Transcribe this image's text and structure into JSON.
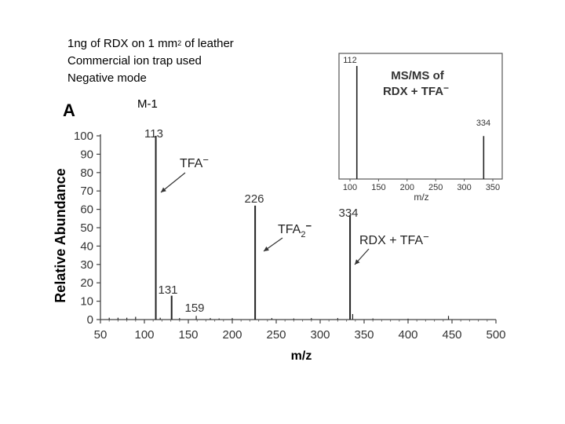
{
  "notes": {
    "line1_pre": "1ng of RDX on 1 mm",
    "line1_sup": "2",
    "line1_post": " of leather",
    "line2": "Commercial ion trap used",
    "line3": "Negative mode",
    "m_minus_1": "M-1"
  },
  "chart_data": [
    {
      "type": "bar",
      "panel_label": "A",
      "xlabel": "m/z",
      "ylabel": "Relative Abundance",
      "xlim": [
        50,
        500
      ],
      "ylim": [
        0,
        100
      ],
      "xticks": [
        50,
        100,
        150,
        200,
        250,
        300,
        350,
        400,
        450,
        500
      ],
      "yticks": [
        0,
        10,
        20,
        30,
        40,
        50,
        60,
        70,
        80,
        90,
        100
      ],
      "peaks": [
        {
          "mz": 113,
          "abundance": 100,
          "label": "113"
        },
        {
          "mz": 131,
          "abundance": 13,
          "label": "131"
        },
        {
          "mz": 159,
          "abundance": 2,
          "label": "159"
        },
        {
          "mz": 226,
          "abundance": 62,
          "label": "226"
        },
        {
          "mz": 334,
          "abundance": 57,
          "label": "334"
        },
        {
          "mz": 337,
          "abundance": 3,
          "label": ""
        },
        {
          "mz": 60,
          "abundance": 1,
          "label": ""
        },
        {
          "mz": 70,
          "abundance": 1,
          "label": ""
        },
        {
          "mz": 80,
          "abundance": 1,
          "label": ""
        },
        {
          "mz": 90,
          "abundance": 1.5,
          "label": ""
        },
        {
          "mz": 118,
          "abundance": 1,
          "label": ""
        },
        {
          "mz": 140,
          "abundance": 0.8,
          "label": ""
        },
        {
          "mz": 175,
          "abundance": 0.8,
          "label": ""
        },
        {
          "mz": 185,
          "abundance": 0.6,
          "label": ""
        },
        {
          "mz": 200,
          "abundance": 0.8,
          "label": ""
        },
        {
          "mz": 245,
          "abundance": 0.8,
          "label": ""
        },
        {
          "mz": 270,
          "abundance": 0.6,
          "label": ""
        },
        {
          "mz": 290,
          "abundance": 0.8,
          "label": ""
        },
        {
          "mz": 320,
          "abundance": 0.8,
          "label": ""
        },
        {
          "mz": 360,
          "abundance": 0.6,
          "label": ""
        },
        {
          "mz": 400,
          "abundance": 0.5,
          "label": ""
        },
        {
          "mz": 446,
          "abundance": 2,
          "label": ""
        }
      ],
      "annotations": [
        {
          "text": "TFA",
          "charge": "−",
          "subscript": "",
          "target_mz": 113
        },
        {
          "text": "TFA",
          "charge": "−",
          "subscript": "2",
          "target_mz": 226
        },
        {
          "text": "RDX + TFA",
          "charge": "−",
          "subscript": "",
          "target_mz": 334
        }
      ]
    },
    {
      "type": "bar",
      "title_line1": "MS/MS of",
      "title_line2": "RDX + TFA",
      "title_charge": "−",
      "xlabel": "m/z",
      "xlim": [
        100,
        350
      ],
      "ylim": [
        0,
        100
      ],
      "xticks": [
        100,
        150,
        200,
        250,
        300,
        350
      ],
      "peaks": [
        {
          "mz": 112,
          "abundance": 100,
          "label": "112"
        },
        {
          "mz": 334,
          "abundance": 38,
          "label": "334"
        }
      ]
    }
  ]
}
